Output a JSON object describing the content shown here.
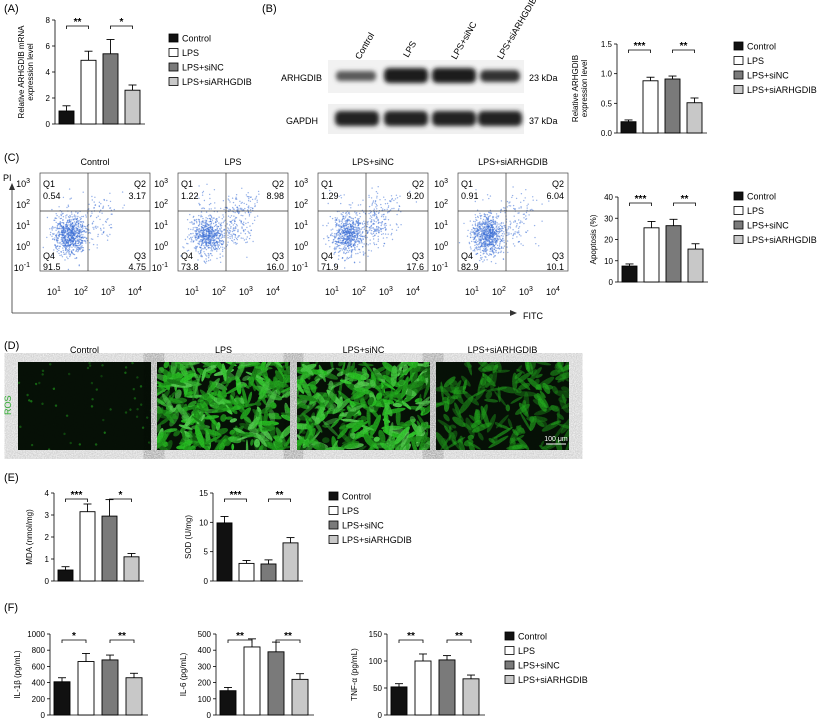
{
  "conditions": [
    "Control",
    "LPS",
    "LPS+siNC",
    "LPS+siARHGDIB"
  ],
  "legend_entries": [
    "Control",
    "LPS",
    "LPS+siNC",
    "LPS+siARHGDIB"
  ],
  "legend_entries_alt": [
    "Control",
    "LPS",
    "LPS+siNC",
    "LPS+siARHGDIB"
  ],
  "colors": {
    "control": "#111111",
    "lps": "#ffffff",
    "sinc": "#7a7a7a",
    "si": "#c8c8c8",
    "ros_green": "#39c43a",
    "scatter": "#3d6fd6"
  },
  "panel_labels": {
    "A": "(A)",
    "B": "(B)",
    "C": "(C)",
    "D": "(D)",
    "E": "(E)",
    "F": "(F)"
  },
  "blot": {
    "lanes": [
      "Control",
      "LPS",
      "LPS+siNC",
      "LPS+siARHGDIB"
    ],
    "rows": [
      {
        "protein": "ARHGDIB",
        "size": "23 kDa"
      },
      {
        "protein": "GAPDH",
        "size": "37 kDa"
      }
    ]
  },
  "flow": {
    "y_axis": "PI",
    "x_axis": "FITC",
    "tick_exponents": [
      "1",
      "2",
      "3",
      "4"
    ],
    "y_tick_exponents": [
      "3",
      "2",
      "1",
      "0",
      "-1"
    ],
    "quadrant_names": [
      "Q1",
      "Q2",
      "Q3",
      "Q4"
    ],
    "plots": [
      {
        "title": "Control",
        "q1": "0.54",
        "q2": "3.17",
        "q3": "4.75",
        "q4": "91.5"
      },
      {
        "title": "LPS",
        "q1": "1.22",
        "q2": "8.98",
        "q3": "16.0",
        "q4": "73.8"
      },
      {
        "title": "LPS+siNC",
        "q1": "1.29",
        "q2": "9.20",
        "q3": "17.6",
        "q4": "71.9"
      },
      {
        "title": "LPS+siARHGDIB",
        "q1": "0.91",
        "q2": "6.04",
        "q3": "10.1",
        "q4": "82.9"
      }
    ]
  },
  "ros": {
    "label": "ROS",
    "titles": [
      "Control",
      "LPS",
      "LPS+siNC",
      "LPS+siARHGDIB"
    ],
    "scale_bar": "100 μm",
    "intensity": [
      0.06,
      0.95,
      0.98,
      0.45
    ]
  },
  "chart_data": [
    {
      "panel": "A",
      "type": "bar",
      "ylabel": "Relative ARHGDIB mRNA expression level",
      "ylabel_lines": [
        "Relative ARHGDIB mRNA",
        "expression level"
      ],
      "categories": [
        "Control",
        "LPS",
        "LPS+siNC",
        "LPS+siARHGDIB"
      ],
      "values": [
        1.0,
        4.9,
        5.4,
        2.6
      ],
      "errors": [
        0.4,
        0.7,
        1.1,
        0.4
      ],
      "ylim": [
        0,
        8
      ],
      "yticks": [
        0,
        2,
        4,
        6,
        8
      ],
      "significance": [
        {
          "pair": [
            0,
            1
          ],
          "label": "**"
        },
        {
          "pair": [
            2,
            3
          ],
          "label": "*"
        }
      ]
    },
    {
      "panel": "B",
      "type": "bar",
      "ylabel": "Relative ARHGDIB expression level",
      "ylabel_lines": [
        "Relative ARHGDIB",
        "expression level"
      ],
      "categories": [
        "Control",
        "LPS",
        "LPS+siNC",
        "LPS+siARHGDIB"
      ],
      "values": [
        0.19,
        0.88,
        0.91,
        0.51
      ],
      "errors": [
        0.03,
        0.06,
        0.05,
        0.08
      ],
      "ylim": [
        0,
        1.5
      ],
      "yticks": [
        0,
        0.5,
        1.0,
        1.5
      ],
      "ytick_labels": [
        "0.0",
        "0.5",
        "1.0",
        "1.5"
      ],
      "significance": [
        {
          "pair": [
            0,
            1
          ],
          "label": "***"
        },
        {
          "pair": [
            2,
            3
          ],
          "label": "**"
        }
      ]
    },
    {
      "panel": "C",
      "type": "bar",
      "ylabel": "Apoptosis (%)",
      "categories": [
        "Control",
        "LPS",
        "LPS+siNC",
        "LPS+siARHGDIB"
      ],
      "values": [
        7.5,
        25.5,
        26.5,
        15.5
      ],
      "errors": [
        1.0,
        3.0,
        3.0,
        2.5
      ],
      "ylim": [
        0,
        40
      ],
      "yticks": [
        0,
        10,
        20,
        30,
        40
      ],
      "significance": [
        {
          "pair": [
            0,
            1
          ],
          "label": "***"
        },
        {
          "pair": [
            2,
            3
          ],
          "label": "**"
        }
      ]
    },
    {
      "panel": "E",
      "type": "bar",
      "ylabel": "MDA (nmol/mg)",
      "categories": [
        "Control",
        "LPS",
        "LPS+siNC",
        "LPS+siARHGDIB"
      ],
      "values": [
        0.5,
        3.15,
        2.95,
        1.1
      ],
      "errors": [
        0.15,
        0.35,
        0.75,
        0.15
      ],
      "ylim": [
        0,
        4
      ],
      "yticks": [
        0,
        1,
        2,
        3,
        4
      ],
      "significance": [
        {
          "pair": [
            0,
            1
          ],
          "label": "***"
        },
        {
          "pair": [
            2,
            3
          ],
          "label": "*"
        }
      ]
    },
    {
      "panel": "E",
      "type": "bar",
      "ylabel": "SOD (U/mg)",
      "categories": [
        "Control",
        "LPS",
        "LPS+siNC",
        "LPS+siARHGDIB"
      ],
      "values": [
        9.9,
        3.0,
        2.9,
        6.5
      ],
      "errors": [
        1.1,
        0.5,
        0.7,
        0.9
      ],
      "ylim": [
        0,
        15
      ],
      "yticks": [
        0,
        5,
        10,
        15
      ],
      "significance": [
        {
          "pair": [
            0,
            1
          ],
          "label": "***"
        },
        {
          "pair": [
            2,
            3
          ],
          "label": "**"
        }
      ]
    },
    {
      "panel": "F",
      "type": "bar",
      "ylabel": "IL-1β (pg/mL)",
      "categories": [
        "Control",
        "LPS",
        "LPS+siNC",
        "LPS+siARHGDIB"
      ],
      "values": [
        410,
        660,
        680,
        460
      ],
      "errors": [
        50,
        100,
        60,
        55
      ],
      "ylim": [
        0,
        1000
      ],
      "yticks": [
        0,
        200,
        400,
        600,
        800,
        1000
      ],
      "significance": [
        {
          "pair": [
            0,
            1
          ],
          "label": "*"
        },
        {
          "pair": [
            2,
            3
          ],
          "label": "**"
        }
      ]
    },
    {
      "panel": "F",
      "type": "bar",
      "ylabel": "IL-6 (pg/mL)",
      "categories": [
        "Control",
        "LPS",
        "LPS+siNC",
        "LPS+siARHGDIB"
      ],
      "values": [
        150,
        420,
        390,
        220
      ],
      "errors": [
        20,
        50,
        60,
        35
      ],
      "ylim": [
        0,
        500
      ],
      "yticks": [
        0,
        100,
        200,
        300,
        400,
        500
      ],
      "significance": [
        {
          "pair": [
            0,
            1
          ],
          "label": "**"
        },
        {
          "pair": [
            2,
            3
          ],
          "label": "**"
        }
      ]
    },
    {
      "panel": "F",
      "type": "bar",
      "ylabel": "TNF-α (pg/mL)",
      "categories": [
        "Control",
        "LPS",
        "LPS+siNC",
        "LPS+siARHGDIB"
      ],
      "values": [
        52,
        100,
        102,
        67
      ],
      "errors": [
        6,
        13,
        8,
        7
      ],
      "ylim": [
        0,
        150
      ],
      "yticks": [
        0,
        50,
        100,
        150
      ],
      "significance": [
        {
          "pair": [
            0,
            1
          ],
          "label": "**"
        },
        {
          "pair": [
            2,
            3
          ],
          "label": "**"
        }
      ]
    }
  ]
}
